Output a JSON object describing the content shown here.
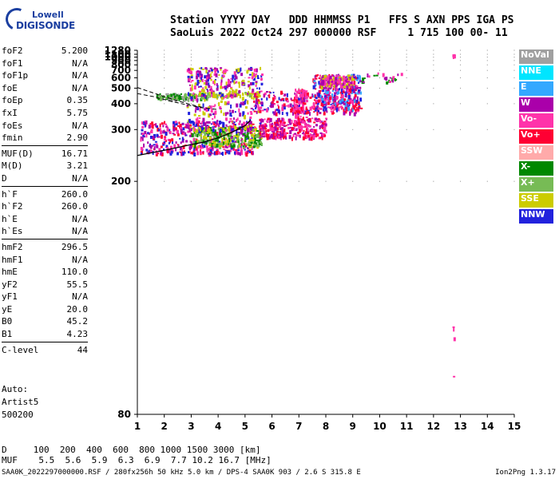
{
  "logo": {
    "line1": "Lowell",
    "line2": "DIGISONDE"
  },
  "header": {
    "line1": "Station YYYY DAY   DDD HHMMSS P1   FFS S AXN PPS IGA PS",
    "line2": "SaoLuis 2022 Oct24 297 000000 RSF     1 715 100 00- 11"
  },
  "params": [
    [
      {
        "k": "foF2",
        "v": "5.200"
      },
      {
        "k": "foF1",
        "v": "N/A"
      },
      {
        "k": "foF1p",
        "v": "N/A"
      },
      {
        "k": "foE",
        "v": "N/A"
      },
      {
        "k": "foEp",
        "v": "0.35"
      },
      {
        "k": "fxI",
        "v": "5.75"
      },
      {
        "k": "foEs",
        "v": "N/A"
      },
      {
        "k": "fmin",
        "v": "2.90"
      }
    ],
    [
      {
        "k": "MUF(D)",
        "v": "16.71"
      },
      {
        "k": "M(D)",
        "v": "3.21"
      },
      {
        "k": "D",
        "v": "N/A"
      }
    ],
    [
      {
        "k": "h`F",
        "v": "260.0"
      },
      {
        "k": "h`F2",
        "v": "260.0"
      },
      {
        "k": "h`E",
        "v": "N/A"
      },
      {
        "k": "h`Es",
        "v": "N/A"
      }
    ],
    [
      {
        "k": "hmF2",
        "v": "296.5"
      },
      {
        "k": "hmF1",
        "v": "N/A"
      },
      {
        "k": "hmE",
        "v": "110.0"
      },
      {
        "k": "yF2",
        "v": "55.5"
      },
      {
        "k": "yF1",
        "v": "N/A"
      },
      {
        "k": "yE",
        "v": "20.0"
      },
      {
        "k": "B0",
        "v": "45.2"
      },
      {
        "k": "B1",
        "v": "4.23"
      }
    ],
    [
      {
        "k": "C-level",
        "v": "44"
      }
    ]
  ],
  "auto": {
    "line1": "Auto:",
    "line2": "Artist5",
    "line3": "500200"
  },
  "legend": [
    {
      "label": "NoVal",
      "color": "#a0a0a0",
      "text": "#ffffff"
    },
    {
      "label": "NNE",
      "color": "#00e5ff",
      "text": "#ffffff"
    },
    {
      "label": "E",
      "color": "#33a8ff",
      "text": "#ffffff"
    },
    {
      "label": "W",
      "color": "#aa00aa",
      "text": "#ffffff"
    },
    {
      "label": "Vo-",
      "color": "#ff33aa",
      "text": "#ffffff"
    },
    {
      "label": "Vo+",
      "color": "#ff0033",
      "text": "#ffffff"
    },
    {
      "label": "SSW",
      "color": "#ffaaaa",
      "text": "#ffffff"
    },
    {
      "label": "X-",
      "color": "#008800",
      "text": "#ffffff"
    },
    {
      "label": "X+",
      "color": "#77bb55",
      "text": "#ffffff"
    },
    {
      "label": "SSE",
      "color": "#cccc00",
      "text": "#ffffff"
    },
    {
      "label": "NNW",
      "color": "#2222dd",
      "text": "#ffffff"
    }
  ],
  "footer": {
    "line1": "D     100  200  400  600  800 1000 1500 3000 [km]",
    "line2": "MUF    5.5  5.6  5.9  6.3  6.9  7.7 10.2 16.7 [MHz]",
    "line3": "SAA0K_2022297000000.RSF / 280fx256h 50 kHz 5.0 km / DPS-4 SAA0K 903 / 2.6 S 315.8 E",
    "version": "Ion2Png 1.3.17"
  },
  "chart_data": {
    "type": "scatter",
    "title": "",
    "xlabel": "",
    "ylabel": "",
    "x_ticks": [
      1,
      2,
      3,
      4,
      5,
      6,
      7,
      8,
      9,
      10,
      11,
      12,
      13,
      14,
      15
    ],
    "y_ticks": [
      80,
      200,
      300,
      400,
      500,
      600,
      700,
      800,
      900,
      1000,
      1100,
      1280
    ],
    "xlim": [
      1,
      15
    ],
    "ylim": [
      80,
      1280
    ],
    "y_scale": "reciprocal",
    "grid": true,
    "profile_curve": {
      "x": [
        1.0,
        2.0,
        3.0,
        3.5,
        4.0,
        4.5,
        5.0,
        5.2
      ],
      "y": [
        240,
        250,
        262,
        268,
        278,
        292,
        312,
        330
      ]
    },
    "dashed_curve_upper": {
      "x": [
        1.0,
        1.5,
        2.0,
        2.5,
        3.0,
        3.5
      ],
      "y": [
        505,
        470,
        440,
        415,
        395,
        380
      ]
    },
    "dashed_curve_lower": {
      "x": [
        1.0,
        1.6,
        2.2,
        2.8,
        3.4,
        4.0
      ],
      "y": [
        460,
        440,
        415,
        395,
        380,
        372
      ]
    },
    "clusters": [
      {
        "x": [
          1.1,
          5.3
        ],
        "y": [
          245,
          330
        ],
        "n": 520,
        "colors": [
          "#aa00aa",
          "#2222dd",
          "#ff0033",
          "#ff33aa"
        ]
      },
      {
        "x": [
          3.0,
          5.6
        ],
        "y": [
          260,
          310
        ],
        "n": 260,
        "colors": [
          "#008800",
          "#77bb55",
          "#cccc00"
        ]
      },
      {
        "x": [
          1.7,
          3.6
        ],
        "y": [
          430,
          465
        ],
        "n": 140,
        "colors": [
          "#008800",
          "#77bb55",
          "#a0a0a0"
        ]
      },
      {
        "x": [
          3.5,
          5.5
        ],
        "y": [
          445,
          480
        ],
        "n": 80,
        "colors": [
          "#cccc00",
          "#77bb55"
        ]
      },
      {
        "x": [
          5.5,
          8.0
        ],
        "y": [
          280,
          340
        ],
        "n": 300,
        "colors": [
          "#ff0033",
          "#ff33aa",
          "#aa00aa"
        ]
      },
      {
        "x": [
          2.8,
          5.6
        ],
        "y": [
          300,
          760
        ],
        "n": 420,
        "colors": [
          "#aa00aa",
          "#ff33aa",
          "#2222dd",
          "#cccc00"
        ]
      },
      {
        "x": [
          5.3,
          9.2
        ],
        "y": [
          360,
          480
        ],
        "n": 260,
        "colors": [
          "#ff0033",
          "#ff33aa",
          "#aa00aa",
          "#2222dd"
        ]
      },
      {
        "x": [
          6.8,
          7.3
        ],
        "y": [
          310,
          500
        ],
        "n": 100,
        "colors": [
          "#ff0033",
          "#ff33aa"
        ]
      },
      {
        "x": [
          7.5,
          9.3
        ],
        "y": [
          380,
          650
        ],
        "n": 330,
        "colors": [
          "#2222dd",
          "#ff33aa",
          "#aa00aa",
          "#ff0033",
          "#33a8ff"
        ]
      },
      {
        "x": [
          7.8,
          9.0
        ],
        "y": [
          520,
          640
        ],
        "n": 150,
        "colors": [
          "#cccc00",
          "#aa00aa",
          "#ff33aa"
        ]
      },
      {
        "x": [
          9.2,
          10.8
        ],
        "y": [
          560,
          680
        ],
        "n": 25,
        "colors": [
          "#aa00aa",
          "#ff33aa",
          "#008800"
        ]
      },
      {
        "x": [
          12.7,
          12.75
        ],
        "y": [
          1040,
          1110
        ],
        "n": 10,
        "colors": [
          "#ff33aa"
        ]
      },
      {
        "x": [
          12.7,
          12.75
        ],
        "y": [
          85,
          105
        ],
        "n": 4,
        "colors": [
          "#ff33aa"
        ]
      }
    ]
  }
}
